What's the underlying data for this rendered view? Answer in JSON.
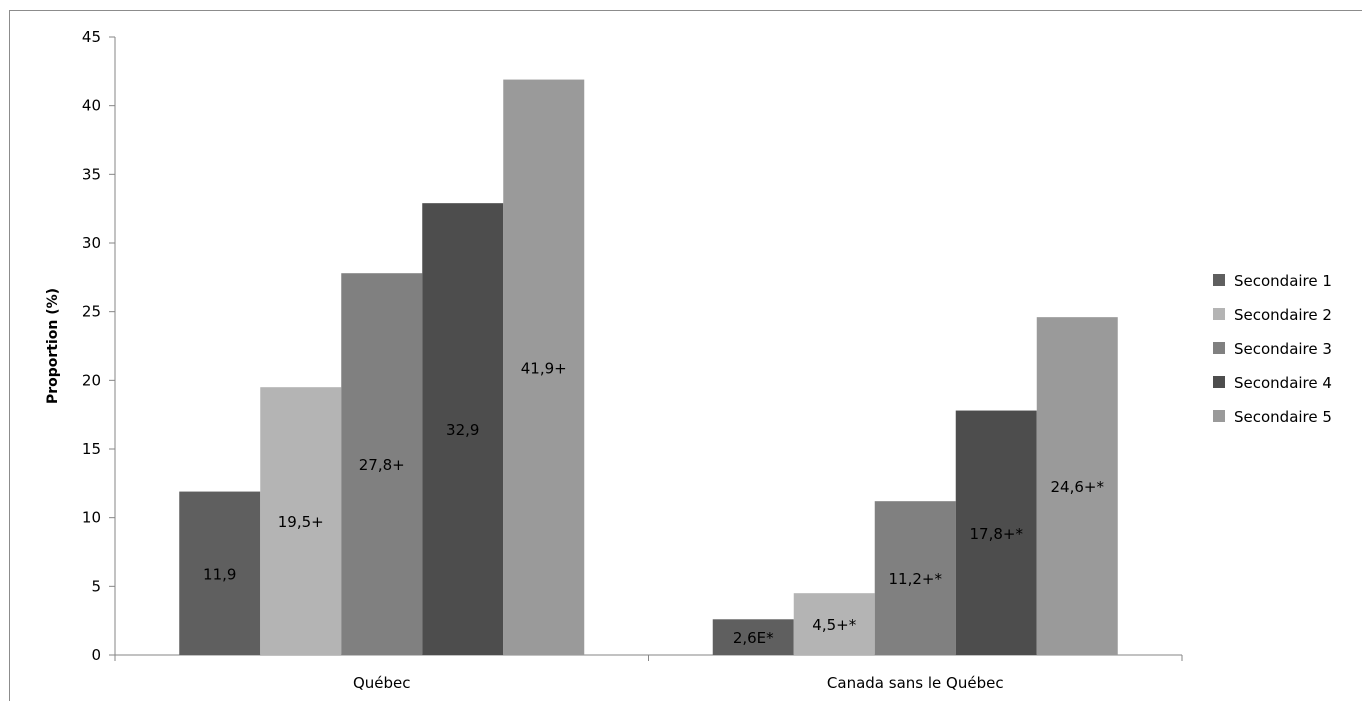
{
  "chart_data": {
    "type": "bar",
    "title": "",
    "xlabel": "",
    "ylabel": "Proportion (%)",
    "ylim": [
      0,
      45
    ],
    "yticks": [
      0,
      5,
      10,
      15,
      20,
      25,
      30,
      35,
      40,
      45
    ],
    "grid": false,
    "legend_position": "right",
    "categories": [
      "Québec",
      "Canada sans le Québec"
    ],
    "series": [
      {
        "name": "Secondaire 1",
        "color": "#5f5f5f",
        "values": [
          11.9,
          2.6
        ],
        "labels": [
          "11,9",
          "2,6E*"
        ]
      },
      {
        "name": "Secondaire 2",
        "color": "#b4b4b4",
        "values": [
          19.5,
          4.5
        ],
        "labels": [
          "19,5+",
          "4,5+*"
        ]
      },
      {
        "name": "Secondaire 3",
        "color": "#808080",
        "values": [
          27.8,
          11.2
        ],
        "labels": [
          "27,8+",
          "11,2+*"
        ]
      },
      {
        "name": "Secondaire 4",
        "color": "#4d4d4d",
        "values": [
          32.9,
          17.8
        ],
        "labels": [
          "32,9",
          "17,8+*"
        ]
      },
      {
        "name": "Secondaire 5",
        "color": "#9a9a9a",
        "values": [
          41.9,
          24.6
        ],
        "labels": [
          "41,9+",
          "24,6+*"
        ]
      }
    ]
  }
}
